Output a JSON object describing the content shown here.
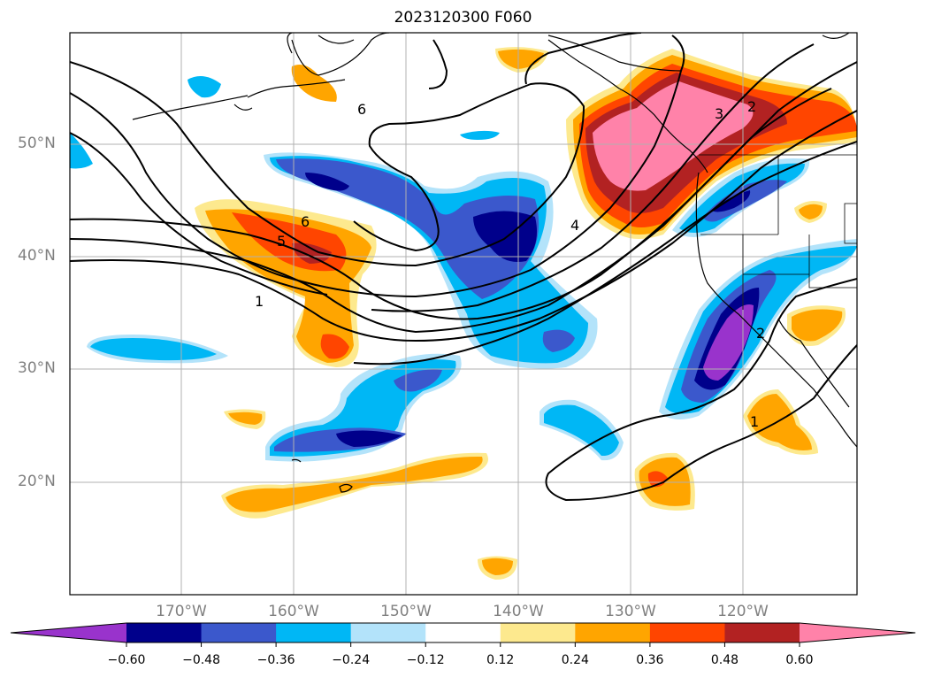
{
  "title": "2023120300 F060",
  "lat_labels": [
    "50°N",
    "40°N",
    "30°N",
    "20°N"
  ],
  "lon_labels": [
    "170°W",
    "160°W",
    "150°W",
    "140°W",
    "130°W",
    "120°W"
  ],
  "colorbar": {
    "colors": [
      "#9933cc",
      "#00008b",
      "#3b58cc",
      "#00b7f5",
      "#b3e3fa",
      "#ffffff",
      "#fde98e",
      "#ffa500",
      "#ff4500",
      "#b22222",
      "#ff82a9"
    ],
    "tick_labels": [
      "−0.60",
      "−0.48",
      "−0.36",
      "−0.24",
      "−0.12",
      "0.12",
      "0.24",
      "0.36",
      "0.48",
      "0.60"
    ]
  },
  "contour_labels": [
    "6",
    "6",
    "5",
    "1",
    "4",
    "3",
    "2",
    "2",
    "1"
  ]
}
